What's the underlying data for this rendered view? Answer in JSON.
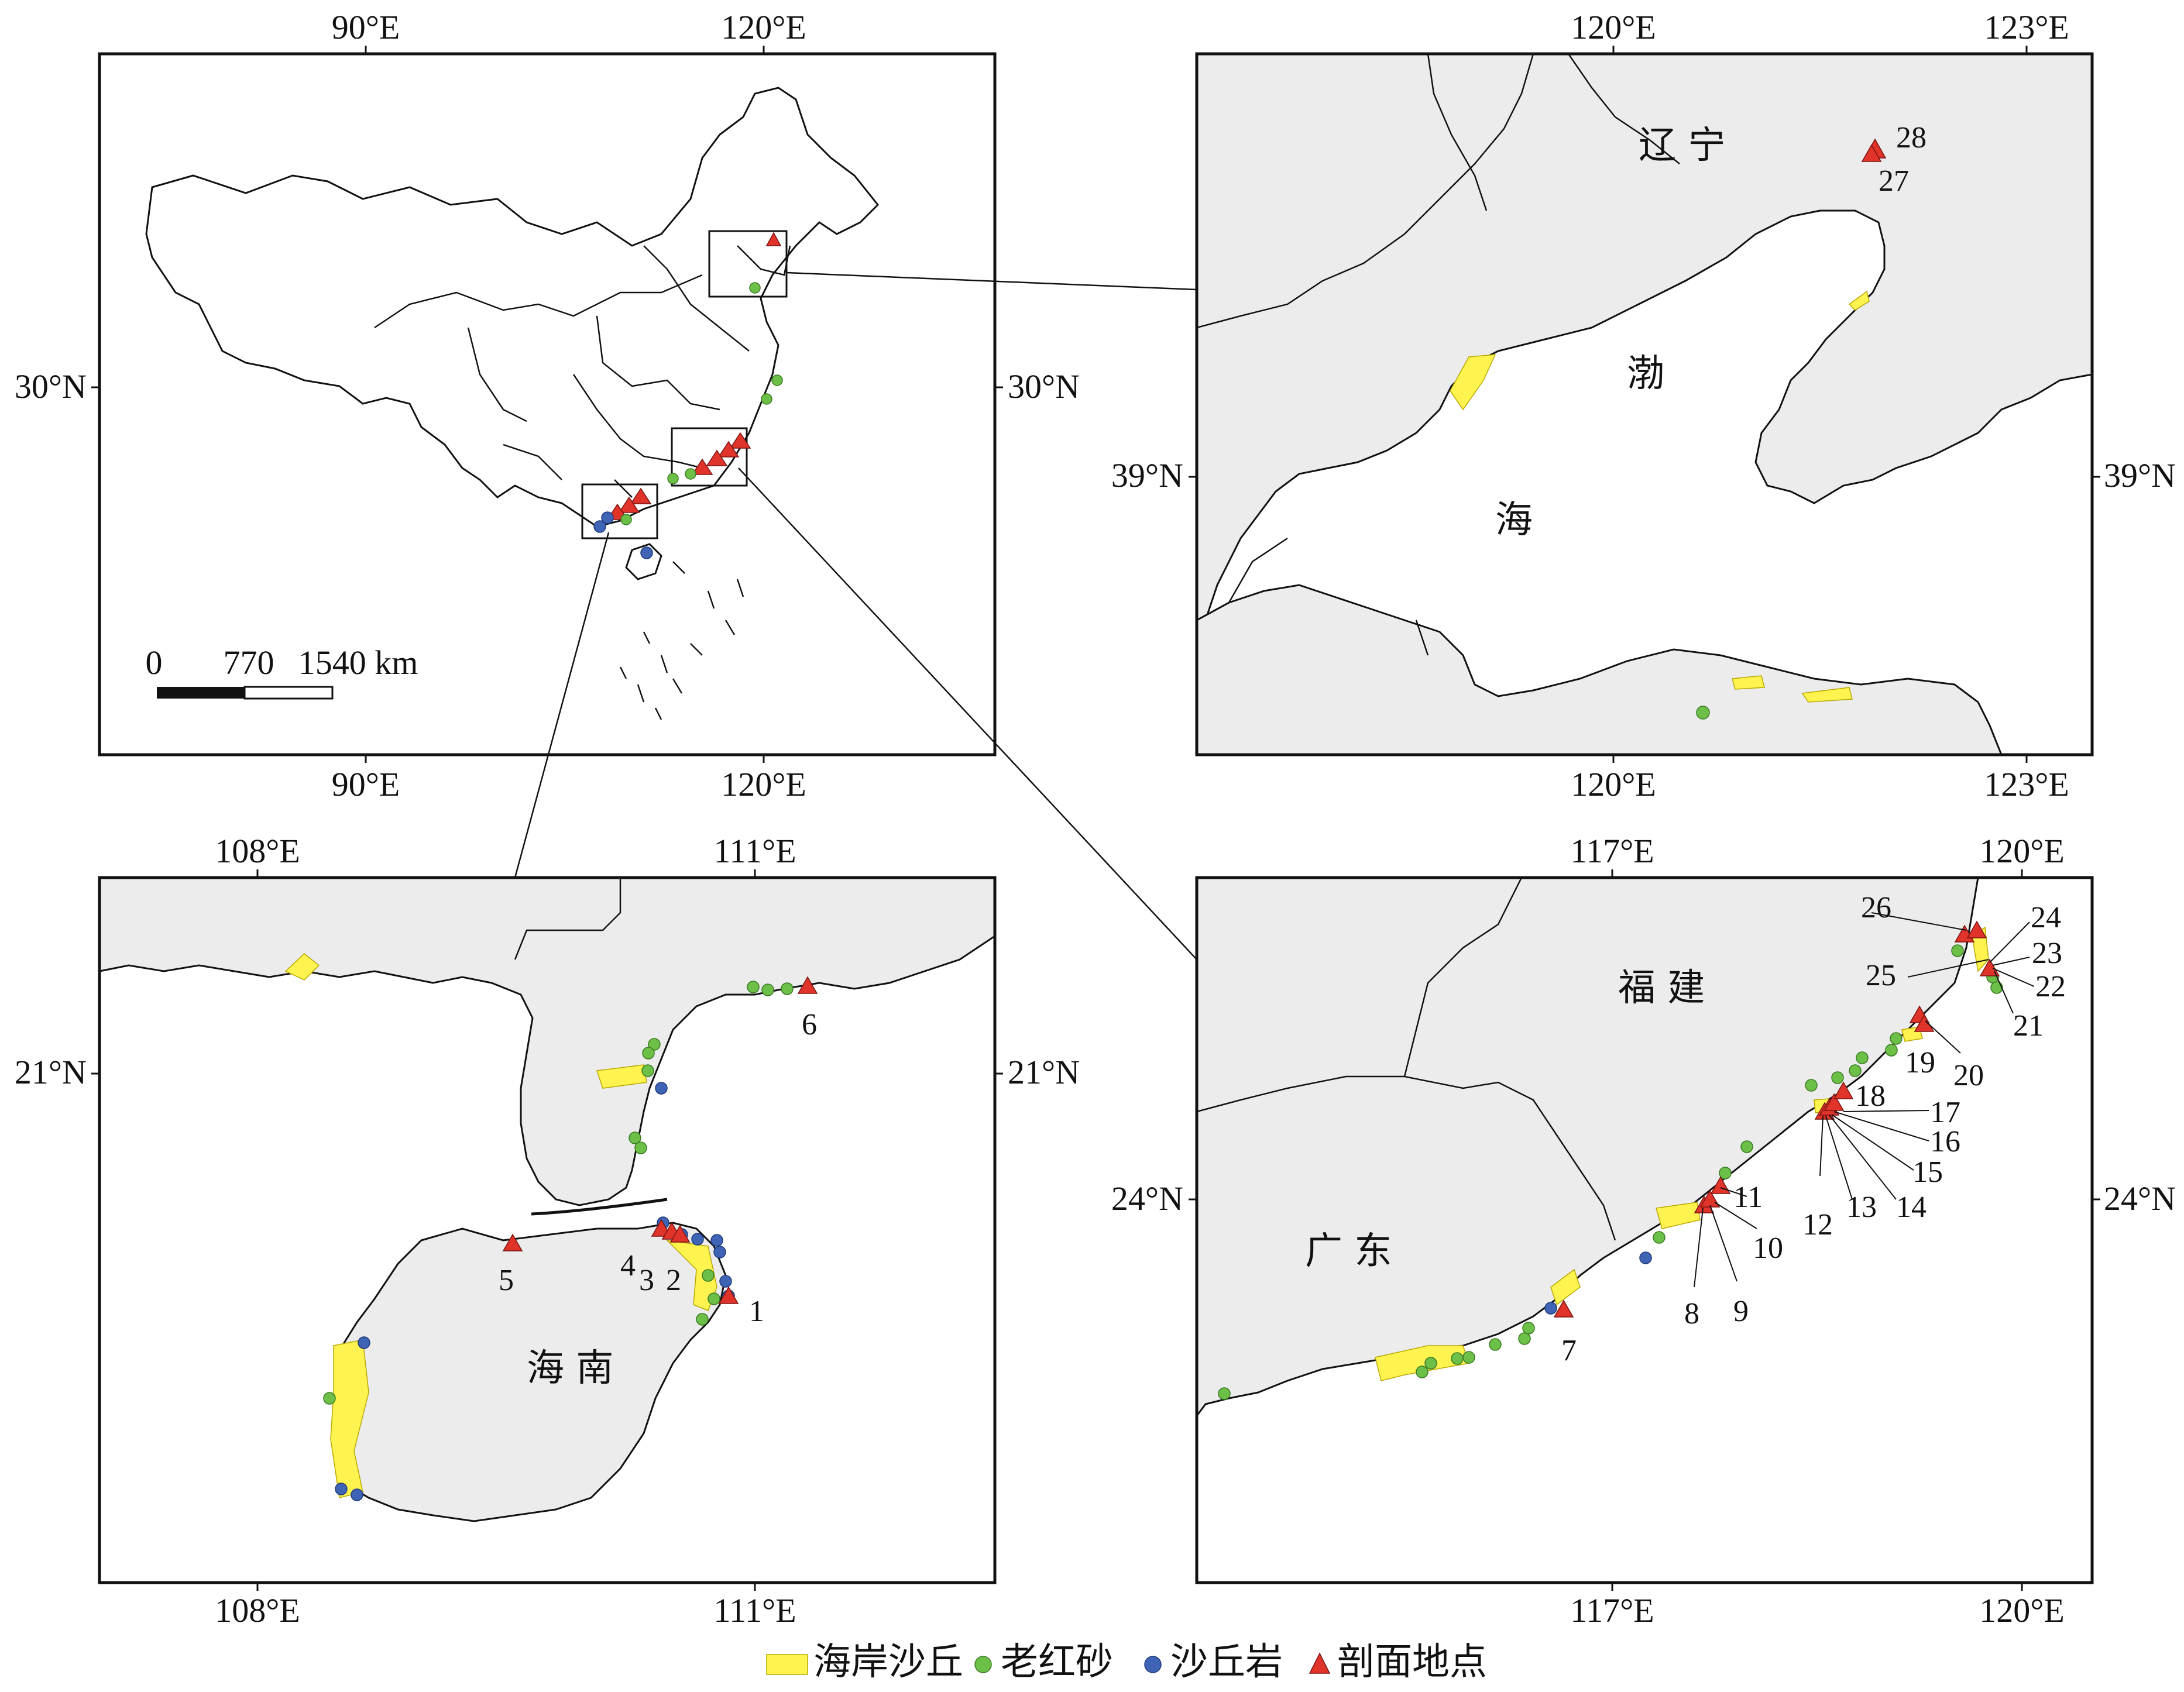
{
  "panels": {
    "china": {
      "top_lon": [
        "90°E",
        "120°E"
      ],
      "bottom_lon": [
        "90°E",
        "120°E"
      ],
      "lat_left": "30°N",
      "lat_right": "30°N",
      "scale": {
        "labels": [
          "0",
          "770",
          "1540 km"
        ]
      }
    },
    "bohai": {
      "top_lon": [
        "120°E",
        "123°E"
      ],
      "bottom_lon": [
        "120°E",
        "123°E"
      ],
      "lat_left": "39°N",
      "lat_right": "39°N",
      "places": {
        "liaoning": "辽 宁",
        "bo": "渤",
        "hai": "海"
      },
      "sites": [
        "28",
        "27"
      ]
    },
    "hainan": {
      "top_lon": [
        "108°E",
        "111°E"
      ],
      "bottom_lon": [
        "108°E",
        "111°E"
      ],
      "lat_left": "21°N",
      "lat_right": "21°N",
      "places": {
        "hainan": "海  南"
      },
      "sites": [
        "6",
        "5",
        "4",
        "3",
        "2",
        "1"
      ]
    },
    "fujian": {
      "top_lon": [
        "117°E",
        "120°E"
      ],
      "bottom_lon": [
        "117°E",
        "120°E"
      ],
      "lat_left": "24°N",
      "lat_right": "24°N",
      "places": {
        "fujian": "福 建",
        "guangdong": "广 东"
      },
      "sites": [
        "26",
        "24",
        "25",
        "23",
        "22",
        "21",
        "19",
        "20",
        "18",
        "17",
        "16",
        "15",
        "14",
        "13",
        "12",
        "11",
        "10",
        "8",
        "9",
        "7"
      ]
    }
  },
  "legend": [
    {
      "key": "dune",
      "label": "海岸沙丘",
      "color": "#fff44f"
    },
    {
      "key": "red-soil",
      "label": "老红砂",
      "color": "#6cc048"
    },
    {
      "key": "dune-rock",
      "label": "沙丘岩",
      "color": "#3f63b5"
    },
    {
      "key": "profile",
      "label": "剖面地点",
      "color": "#e0332a"
    }
  ]
}
